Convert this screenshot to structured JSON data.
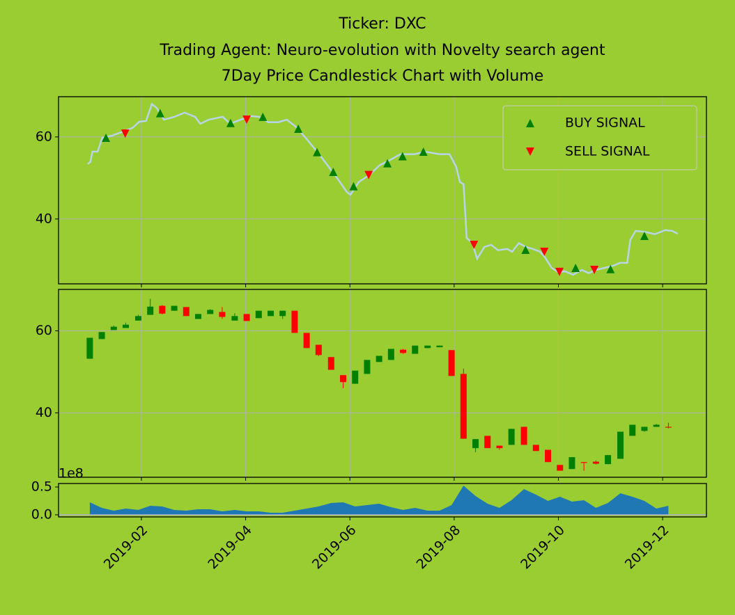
{
  "chart_data": [
    {
      "type": "line",
      "title": "Ticker: DXC",
      "subtitle": "Trading Agent: Neuro-evolution with Novelty search agent",
      "subtitle2": "7Day Price Candlestick Chart with Volume",
      "ylim": [
        24.2,
        69.8
      ],
      "yticks": [
        40,
        60
      ],
      "grid": true,
      "legend": "upper right",
      "series": [
        {
          "color": "#b7d5ea",
          "x": [
            -0.03,
            0.02,
            0.06,
            0.16,
            0.25,
            0.43,
            0.63,
            0.83,
            0.96,
            1.09,
            1.2,
            1.29,
            1.43,
            1.63,
            1.83,
            2.03,
            2.13,
            2.29,
            2.56,
            2.7,
            2.9,
            3.1,
            3.26,
            3.43,
            3.63,
            3.79,
            3.97,
            4.17,
            4.37,
            4.57,
            4.77,
            4.94,
            5.01,
            5.17,
            5.37,
            5.57,
            5.77,
            5.97,
            6.24,
            6.44,
            6.71,
            6.91,
            7.04,
            7.11,
            7.18,
            7.24,
            7.35,
            7.44,
            7.58,
            7.71,
            7.84,
            8.02,
            8.11,
            8.24,
            8.38,
            8.51,
            8.65,
            8.74,
            8.87,
            9.01,
            9.12,
            9.28,
            9.45,
            9.58,
            9.72,
            9.89,
            10.05,
            10.18,
            10.32,
            10.38,
            10.48,
            10.65,
            10.85,
            11.05,
            11.18,
            11.29
          ],
          "values": [
            53.4,
            53.9,
            56.4,
            56.4,
            59.8,
            60.3,
            61.2,
            62.2,
            63.7,
            63.9,
            68.0,
            67.1,
            64.2,
            64.9,
            65.9,
            64.9,
            63.2,
            64.2,
            64.9,
            63.2,
            64.2,
            65.1,
            64.9,
            63.6,
            63.6,
            64.2,
            62.4,
            59.5,
            56.4,
            53.1,
            49.7,
            46.6,
            45.9,
            49.0,
            50.7,
            53.1,
            54.4,
            55.8,
            55.8,
            56.4,
            55.8,
            55.8,
            52.7,
            49.0,
            48.5,
            35.4,
            34.1,
            30.3,
            33.2,
            33.7,
            32.4,
            32.7,
            32.0,
            34.1,
            33.2,
            32.7,
            32.0,
            30.7,
            28.1,
            26.9,
            27.3,
            26.4,
            27.6,
            26.8,
            27.6,
            28.1,
            28.6,
            29.3,
            29.3,
            34.9,
            37.1,
            36.9,
            36.3,
            37.3,
            37.1,
            36.4
          ]
        },
        {
          "name": "BUY SIGNAL",
          "color": "#008000",
          "marker": "^",
          "x": [
            0.32,
            1.36,
            2.71,
            3.33,
            4.01,
            4.37,
            4.68,
            5.07,
            5.72,
            6.01,
            6.41,
            8.37,
            9.33,
            10.0,
            10.65
          ],
          "values": [
            59.8,
            65.8,
            63.4,
            64.9,
            62.0,
            56.3,
            51.5,
            48.0,
            53.6,
            55.3,
            56.4,
            32.5,
            28.1,
            27.8,
            35.9
          ]
        },
        {
          "name": "SELL SIGNAL",
          "color": "#ff0000",
          "marker": "v",
          "x": [
            0.69,
            3.02,
            5.36,
            7.38,
            8.73,
            9.02,
            9.69
          ],
          "values": [
            60.8,
            64.2,
            50.7,
            33.7,
            32.0,
            27.1,
            27.6
          ]
        }
      ]
    },
    {
      "type": "candlestick",
      "ylim": [
        24.3,
        70.1
      ],
      "yticks": [
        40,
        60
      ],
      "grid": true,
      "up_color": "#008000",
      "down_color": "#ff0000",
      "x": [
        0.01,
        0.24,
        0.47,
        0.7,
        0.94,
        1.17,
        1.4,
        1.63,
        1.86,
        2.09,
        2.32,
        2.55,
        2.79,
        3.02,
        3.25,
        3.48,
        3.71,
        3.94,
        4.17,
        4.4,
        4.64,
        4.87,
        5.1,
        5.33,
        5.56,
        5.79,
        6.02,
        6.25,
        6.49,
        6.72,
        6.95,
        7.18,
        7.41,
        7.64,
        7.87,
        8.1,
        8.34,
        8.57,
        8.8,
        9.03,
        9.26,
        9.49,
        9.72,
        9.95,
        10.19,
        10.42,
        10.65,
        10.88,
        11.11
      ],
      "open": [
        53.2,
        58.0,
        60.2,
        60.7,
        62.5,
        63.9,
        66.1,
        64.9,
        65.8,
        62.9,
        64.1,
        64.6,
        62.5,
        64.1,
        63.1,
        63.6,
        63.6,
        64.9,
        59.5,
        56.6,
        53.6,
        49.2,
        47.1,
        49.5,
        52.4,
        52.9,
        55.4,
        54.4,
        55.8,
        56.0,
        55.3,
        49.5,
        31.4,
        34.4,
        32.0,
        32.2,
        36.6,
        32.2,
        31.0,
        27.3,
        26.3,
        28.0,
        28.1,
        27.5,
        28.8,
        34.4,
        35.6,
        36.6,
        36.6
      ],
      "close": [
        58.3,
        59.7,
        61.0,
        61.5,
        63.6,
        65.9,
        64.2,
        66.1,
        63.6,
        64.1,
        65.1,
        63.4,
        63.6,
        62.4,
        64.9,
        64.9,
        64.9,
        59.5,
        55.8,
        54.1,
        50.5,
        47.5,
        50.3,
        52.9,
        53.9,
        55.6,
        54.6,
        56.4,
        56.4,
        56.4,
        49.0,
        33.7,
        33.6,
        31.4,
        31.4,
        36.1,
        32.2,
        30.7,
        28.0,
        25.9,
        29.2,
        27.8,
        27.6,
        29.7,
        35.4,
        37.1,
        36.6,
        37.1,
        36.4
      ],
      "high": [
        58.3,
        59.7,
        61.3,
        62.0,
        63.9,
        67.8,
        66.3,
        66.1,
        65.8,
        64.1,
        65.3,
        65.8,
        64.3,
        64.1,
        64.9,
        64.9,
        64.9,
        64.9,
        59.5,
        56.6,
        53.6,
        49.2,
        50.3,
        52.9,
        53.9,
        55.6,
        55.6,
        56.4,
        56.4,
        56.4,
        55.3,
        50.8,
        33.6,
        34.4,
        32.0,
        36.1,
        36.6,
        32.2,
        31.0,
        27.3,
        29.2,
        28.0,
        28.4,
        29.7,
        35.4,
        37.1,
        36.6,
        37.3,
        37.6
      ],
      "low": [
        53.2,
        58.0,
        60.2,
        60.7,
        62.5,
        63.9,
        64.0,
        64.9,
        63.6,
        62.9,
        64.1,
        62.9,
        62.5,
        62.4,
        63.1,
        63.6,
        62.9,
        59.5,
        55.8,
        53.8,
        50.5,
        46.0,
        47.1,
        49.5,
        52.4,
        52.9,
        54.4,
        54.4,
        55.8,
        56.0,
        49.0,
        33.7,
        30.4,
        31.4,
        31.0,
        32.2,
        32.2,
        30.7,
        28.0,
        25.9,
        26.3,
        25.9,
        27.4,
        27.5,
        28.8,
        34.4,
        35.4,
        36.6,
        36.2
      ]
    },
    {
      "type": "area",
      "color": "#1f77b4",
      "offset_label": "1e8",
      "ylim": [
        -0.0375,
        0.5625
      ],
      "yticks": [
        {
          "value": 0,
          "label": "0.0"
        },
        0.5
      ],
      "xlim": [
        -0.59,
        11.84
      ],
      "xticks": [
        {
          "value": 1,
          "label": "2019-02"
        },
        {
          "value": 3,
          "label": "2019-04"
        },
        {
          "value": 5,
          "label": "2019-06"
        },
        {
          "value": 7,
          "label": "2019-08"
        },
        {
          "value": 9,
          "label": "2019-10"
        },
        {
          "value": 11,
          "label": "2019-12"
        }
      ],
      "x": [
        0.01,
        0.24,
        0.47,
        0.7,
        0.94,
        1.17,
        1.4,
        1.63,
        1.86,
        2.09,
        2.32,
        2.55,
        2.79,
        3.02,
        3.25,
        3.48,
        3.71,
        3.94,
        4.17,
        4.4,
        4.64,
        4.87,
        5.1,
        5.33,
        5.56,
        5.79,
        6.02,
        6.25,
        6.49,
        6.72,
        6.95,
        7.18,
        7.41,
        7.64,
        7.87,
        8.1,
        8.34,
        8.57,
        8.8,
        9.03,
        9.26,
        9.49,
        9.72,
        9.95,
        10.19,
        10.42,
        10.65,
        10.88,
        11.11
      ],
      "values": [
        0.225,
        0.125,
        0.075,
        0.112,
        0.088,
        0.162,
        0.15,
        0.088,
        0.075,
        0.1,
        0.1,
        0.062,
        0.088,
        0.062,
        0.062,
        0.038,
        0.038,
        0.075,
        0.112,
        0.15,
        0.212,
        0.225,
        0.15,
        0.175,
        0.2,
        0.138,
        0.088,
        0.125,
        0.075,
        0.075,
        0.175,
        0.525,
        0.338,
        0.2,
        0.125,
        0.262,
        0.462,
        0.362,
        0.25,
        0.325,
        0.238,
        0.262,
        0.125,
        0.212,
        0.388,
        0.325,
        0.25,
        0.112,
        0.162
      ]
    }
  ]
}
